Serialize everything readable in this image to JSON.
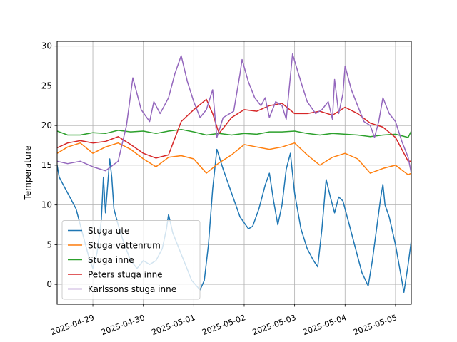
{
  "chart_data": {
    "type": "line",
    "title": "",
    "xlabel": "",
    "ylabel": "Temperature",
    "xlim": [
      "2025-04-28 07:00",
      "2025-05-05 07:30"
    ],
    "ylim": [
      -2.5,
      30.6
    ],
    "x_ticks": [
      "2025-04-29",
      "2025-04-30",
      "2025-05-01",
      "2025-05-02",
      "2025-05-03",
      "2025-05-04",
      "2025-05-05"
    ],
    "y_ticks": [
      0,
      5,
      10,
      15,
      20,
      25,
      30
    ],
    "grid": true,
    "legend_position": "lower-left",
    "series": [
      {
        "name": "Stuga ute",
        "color": "#1f77b4",
        "points": [
          [
            "2025-04-28 07:00",
            15.0
          ],
          [
            "2025-04-28 08:00",
            13.5
          ],
          [
            "2025-04-28 10:00",
            12.5
          ],
          [
            "2025-04-28 13:00",
            11.0
          ],
          [
            "2025-04-28 16:00",
            9.5
          ],
          [
            "2025-04-28 19:00",
            6.5
          ],
          [
            "2025-04-28 22:00",
            3.5
          ],
          [
            "2025-04-29 00:00",
            2.0
          ],
          [
            "2025-04-29 02:00",
            4.0
          ],
          [
            "2025-04-29 04:00",
            8.0
          ],
          [
            "2025-04-29 05:00",
            13.5
          ],
          [
            "2025-04-29 06:00",
            9.0
          ],
          [
            "2025-04-29 08:00",
            15.8
          ],
          [
            "2025-04-29 09:00",
            13.5
          ],
          [
            "2025-04-29 10:00",
            9.5
          ],
          [
            "2025-04-29 12:00",
            7.5
          ],
          [
            "2025-04-29 15:00",
            5.0
          ],
          [
            "2025-04-29 18:00",
            3.0
          ],
          [
            "2025-04-29 21:00",
            2.0
          ],
          [
            "2025-04-30 00:00",
            3.0
          ],
          [
            "2025-04-30 03:00",
            2.5
          ],
          [
            "2025-04-30 06:00",
            3.0
          ],
          [
            "2025-04-30 09:00",
            4.5
          ],
          [
            "2025-04-30 11:00",
            7.0
          ],
          [
            "2025-04-30 12:00",
            8.8
          ],
          [
            "2025-04-30 14:00",
            6.5
          ],
          [
            "2025-04-30 17:00",
            4.5
          ],
          [
            "2025-04-30 20:00",
            2.5
          ],
          [
            "2025-04-30 23:00",
            0.5
          ],
          [
            "2025-05-01 03:00",
            -0.7
          ],
          [
            "2025-05-01 05:00",
            0.5
          ],
          [
            "2025-05-01 07:00",
            5.0
          ],
          [
            "2025-05-01 09:00",
            12.0
          ],
          [
            "2025-05-01 11:00",
            17.0
          ],
          [
            "2025-05-01 14:00",
            14.5
          ],
          [
            "2025-05-01 18:00",
            11.5
          ],
          [
            "2025-05-01 22:00",
            8.5
          ],
          [
            "2025-05-02 02:00",
            7.0
          ],
          [
            "2025-05-02 04:00",
            7.3
          ],
          [
            "2025-05-02 07:00",
            9.5
          ],
          [
            "2025-05-02 10:00",
            12.5
          ],
          [
            "2025-05-02 12:00",
            14.0
          ],
          [
            "2025-05-02 14:00",
            10.5
          ],
          [
            "2025-05-02 16:00",
            7.5
          ],
          [
            "2025-05-02 18:00",
            10.0
          ],
          [
            "2025-05-02 20:00",
            14.5
          ],
          [
            "2025-05-02 22:00",
            16.5
          ],
          [
            "2025-05-03 00:00",
            11.5
          ],
          [
            "2025-05-03 03:00",
            7.0
          ],
          [
            "2025-05-03 06:00",
            4.5
          ],
          [
            "2025-05-03 09:00",
            3.0
          ],
          [
            "2025-05-03 11:00",
            2.2
          ],
          [
            "2025-05-03 13:00",
            7.0
          ],
          [
            "2025-05-03 15:00",
            13.2
          ],
          [
            "2025-05-03 17:00",
            11.0
          ],
          [
            "2025-05-03 19:00",
            9.0
          ],
          [
            "2025-05-03 21:00",
            11.0
          ],
          [
            "2025-05-03 23:00",
            10.5
          ],
          [
            "2025-05-04 02:00",
            7.5
          ],
          [
            "2025-05-04 05:00",
            4.5
          ],
          [
            "2025-05-04 08:00",
            1.5
          ],
          [
            "2025-05-04 11:00",
            -0.2
          ],
          [
            "2025-05-04 13:00",
            3.0
          ],
          [
            "2025-05-04 15:00",
            7.0
          ],
          [
            "2025-05-04 17:00",
            11.0
          ],
          [
            "2025-05-04 18:00",
            12.6
          ],
          [
            "2025-05-04 19:00",
            10.0
          ],
          [
            "2025-05-04 21:00",
            8.5
          ],
          [
            "2025-05-05 00:00",
            5.0
          ],
          [
            "2025-05-05 02:00",
            2.0
          ],
          [
            "2025-05-05 04:00",
            -1.0
          ],
          [
            "2025-05-05 06:00",
            2.5
          ],
          [
            "2025-05-05 07:30",
            5.5
          ]
        ]
      },
      {
        "name": "Stuga vattenrum",
        "color": "#ff7f0e",
        "points": [
          [
            "2025-04-28 07:00",
            16.5
          ],
          [
            "2025-04-28 12:00",
            17.3
          ],
          [
            "2025-04-28 18:00",
            17.8
          ],
          [
            "2025-04-29 00:00",
            16.5
          ],
          [
            "2025-04-29 06:00",
            17.3
          ],
          [
            "2025-04-29 12:00",
            17.8
          ],
          [
            "2025-04-29 18:00",
            17.0
          ],
          [
            "2025-04-30 00:00",
            15.8
          ],
          [
            "2025-04-30 06:00",
            14.8
          ],
          [
            "2025-04-30 12:00",
            16.0
          ],
          [
            "2025-04-30 18:00",
            16.2
          ],
          [
            "2025-05-01 00:00",
            15.8
          ],
          [
            "2025-05-01 06:00",
            14.0
          ],
          [
            "2025-05-01 12:00",
            15.3
          ],
          [
            "2025-05-01 18:00",
            16.3
          ],
          [
            "2025-05-02 00:00",
            17.6
          ],
          [
            "2025-05-02 06:00",
            17.3
          ],
          [
            "2025-05-02 12:00",
            17.0
          ],
          [
            "2025-05-02 18:00",
            17.3
          ],
          [
            "2025-05-03 00:00",
            17.8
          ],
          [
            "2025-05-03 06:00",
            16.3
          ],
          [
            "2025-05-03 12:00",
            15.0
          ],
          [
            "2025-05-03 18:00",
            16.0
          ],
          [
            "2025-05-04 00:00",
            16.5
          ],
          [
            "2025-05-04 06:00",
            15.8
          ],
          [
            "2025-05-04 12:00",
            14.0
          ],
          [
            "2025-05-04 18:00",
            14.6
          ],
          [
            "2025-05-05 00:00",
            15.0
          ],
          [
            "2025-05-05 06:00",
            13.8
          ],
          [
            "2025-05-05 07:30",
            14.0
          ]
        ]
      },
      {
        "name": "Stuga inne",
        "color": "#2ca02c",
        "points": [
          [
            "2025-04-28 07:00",
            19.3
          ],
          [
            "2025-04-28 12:00",
            18.8
          ],
          [
            "2025-04-28 18:00",
            18.8
          ],
          [
            "2025-04-29 00:00",
            19.1
          ],
          [
            "2025-04-29 06:00",
            19.0
          ],
          [
            "2025-04-29 12:00",
            19.4
          ],
          [
            "2025-04-29 18:00",
            19.2
          ],
          [
            "2025-04-30 00:00",
            19.3
          ],
          [
            "2025-04-30 06:00",
            19.0
          ],
          [
            "2025-04-30 12:00",
            19.3
          ],
          [
            "2025-04-30 18:00",
            19.5
          ],
          [
            "2025-05-01 00:00",
            19.2
          ],
          [
            "2025-05-01 06:00",
            18.8
          ],
          [
            "2025-05-01 12:00",
            19.0
          ],
          [
            "2025-05-01 18:00",
            18.8
          ],
          [
            "2025-05-02 00:00",
            19.0
          ],
          [
            "2025-05-02 06:00",
            18.9
          ],
          [
            "2025-05-02 12:00",
            19.2
          ],
          [
            "2025-05-02 18:00",
            19.2
          ],
          [
            "2025-05-03 00:00",
            19.3
          ],
          [
            "2025-05-03 06:00",
            19.0
          ],
          [
            "2025-05-03 12:00",
            18.8
          ],
          [
            "2025-05-03 18:00",
            19.0
          ],
          [
            "2025-05-04 00:00",
            18.9
          ],
          [
            "2025-05-04 06:00",
            18.8
          ],
          [
            "2025-05-04 12:00",
            18.6
          ],
          [
            "2025-05-04 18:00",
            18.8
          ],
          [
            "2025-05-05 00:00",
            18.9
          ],
          [
            "2025-05-05 06:00",
            18.5
          ],
          [
            "2025-05-05 07:30",
            19.3
          ]
        ]
      },
      {
        "name": "Peters stuga inne",
        "color": "#d62728",
        "points": [
          [
            "2025-04-28 07:00",
            17.2
          ],
          [
            "2025-04-28 12:00",
            17.8
          ],
          [
            "2025-04-28 18:00",
            18.1
          ],
          [
            "2025-04-29 00:00",
            17.8
          ],
          [
            "2025-04-29 06:00",
            18.0
          ],
          [
            "2025-04-29 12:00",
            18.6
          ],
          [
            "2025-04-29 18:00",
            17.6
          ],
          [
            "2025-04-30 00:00",
            16.5
          ],
          [
            "2025-04-30 06:00",
            15.9
          ],
          [
            "2025-04-30 12:00",
            16.3
          ],
          [
            "2025-04-30 18:00",
            20.5
          ],
          [
            "2025-05-01 00:00",
            22.0
          ],
          [
            "2025-05-01 06:00",
            23.3
          ],
          [
            "2025-05-01 09:00",
            21.5
          ],
          [
            "2025-05-01 12:00",
            19.0
          ],
          [
            "2025-05-01 18:00",
            21.0
          ],
          [
            "2025-05-02 00:00",
            22.0
          ],
          [
            "2025-05-02 06:00",
            21.8
          ],
          [
            "2025-05-02 12:00",
            22.5
          ],
          [
            "2025-05-02 18:00",
            22.8
          ],
          [
            "2025-05-03 00:00",
            21.5
          ],
          [
            "2025-05-03 06:00",
            21.5
          ],
          [
            "2025-05-03 12:00",
            21.8
          ],
          [
            "2025-05-03 18:00",
            21.3
          ],
          [
            "2025-05-04 00:00",
            22.3
          ],
          [
            "2025-05-04 06:00",
            21.5
          ],
          [
            "2025-05-04 12:00",
            20.3
          ],
          [
            "2025-05-04 18:00",
            19.8
          ],
          [
            "2025-05-05 00:00",
            18.5
          ],
          [
            "2025-05-05 06:00",
            15.5
          ],
          [
            "2025-05-05 07:30",
            15.5
          ]
        ]
      },
      {
        "name": "Karlssons stuga inne",
        "color": "#9467bd",
        "points": [
          [
            "2025-04-28 07:00",
            15.5
          ],
          [
            "2025-04-28 12:00",
            15.2
          ],
          [
            "2025-04-28 18:00",
            15.5
          ],
          [
            "2025-04-29 00:00",
            14.8
          ],
          [
            "2025-04-29 06:00",
            14.3
          ],
          [
            "2025-04-29 12:00",
            15.5
          ],
          [
            "2025-04-29 16:00",
            20.0
          ],
          [
            "2025-04-29 19:00",
            26.0
          ],
          [
            "2025-04-29 23:00",
            22.0
          ],
          [
            "2025-04-30 03:00",
            20.5
          ],
          [
            "2025-04-30 05:00",
            23.0
          ],
          [
            "2025-04-30 08:00",
            21.5
          ],
          [
            "2025-04-30 12:00",
            23.5
          ],
          [
            "2025-04-30 15:00",
            26.5
          ],
          [
            "2025-04-30 18:00",
            28.8
          ],
          [
            "2025-04-30 21:00",
            25.5
          ],
          [
            "2025-05-01 00:00",
            23.0
          ],
          [
            "2025-05-01 03:00",
            21.0
          ],
          [
            "2025-05-01 06:00",
            22.0
          ],
          [
            "2025-05-01 09:00",
            24.5
          ],
          [
            "2025-05-01 11:00",
            18.5
          ],
          [
            "2025-05-01 14:00",
            21.0
          ],
          [
            "2025-05-01 19:00",
            21.8
          ],
          [
            "2025-05-01 22:00",
            26.5
          ],
          [
            "2025-05-01 23:00",
            28.3
          ],
          [
            "2025-05-02 02:00",
            25.5
          ],
          [
            "2025-05-02 05:00",
            23.5
          ],
          [
            "2025-05-02 08:00",
            22.5
          ],
          [
            "2025-05-02 10:00",
            23.5
          ],
          [
            "2025-05-02 12:00",
            21.0
          ],
          [
            "2025-05-02 15:00",
            23.0
          ],
          [
            "2025-05-02 18:00",
            22.5
          ],
          [
            "2025-05-02 20:00",
            20.8
          ],
          [
            "2025-05-02 23:00",
            29.0
          ],
          [
            "2025-05-03 03:00",
            25.5
          ],
          [
            "2025-05-03 06:00",
            23.0
          ],
          [
            "2025-05-03 10:00",
            21.5
          ],
          [
            "2025-05-03 13:00",
            22.0
          ],
          [
            "2025-05-03 16:00",
            23.0
          ],
          [
            "2025-05-03 18:00",
            20.8
          ],
          [
            "2025-05-03 19:00",
            25.8
          ],
          [
            "2025-05-03 21:00",
            21.5
          ],
          [
            "2025-05-03 23:00",
            24.0
          ],
          [
            "2025-05-04 00:00",
            27.5
          ],
          [
            "2025-05-04 03:00",
            24.5
          ],
          [
            "2025-05-04 06:00",
            22.5
          ],
          [
            "2025-05-04 09:00",
            20.5
          ],
          [
            "2025-05-04 12:00",
            20.0
          ],
          [
            "2025-05-04 14:00",
            18.5
          ],
          [
            "2025-05-04 16:00",
            20.5
          ],
          [
            "2025-05-04 18:00",
            23.5
          ],
          [
            "2025-05-04 21:00",
            21.5
          ],
          [
            "2025-05-05 00:00",
            20.5
          ],
          [
            "2025-05-05 03:00",
            18.0
          ],
          [
            "2025-05-05 06:00",
            16.0
          ],
          [
            "2025-05-05 07:30",
            14.0
          ]
        ]
      }
    ]
  }
}
